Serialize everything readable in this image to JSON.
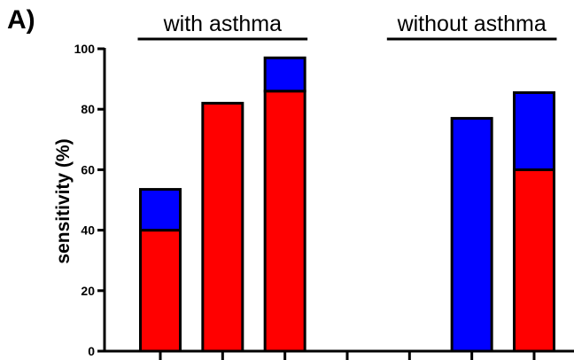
{
  "panel_label": "A)",
  "chart_data": {
    "type": "bar",
    "stacked": true,
    "title": "",
    "xlabel": "",
    "ylabel": "sensitivity (%)",
    "ylim": [
      0,
      100
    ],
    "yticks": [
      0,
      20,
      40,
      60,
      80,
      100
    ],
    "ytick_labels": [
      "0",
      "20",
      "40",
      "60",
      "80",
      "100"
    ],
    "categories": [
      "",
      "",
      "",
      "",
      "",
      "",
      ""
    ],
    "series": [
      {
        "color": "#ff0000",
        "values": [
          40,
          82,
          86,
          0,
          0,
          0,
          60
        ]
      },
      {
        "color": "#0000ff",
        "values": [
          13.5,
          0,
          11,
          0,
          0,
          77,
          25.5
        ]
      }
    ],
    "group_labels": [
      {
        "label": "with asthma",
        "categories": [
          0,
          2
        ]
      },
      {
        "label": "without asthma",
        "categories": [
          4,
          6
        ]
      }
    ],
    "grid": false,
    "legend": "none"
  }
}
